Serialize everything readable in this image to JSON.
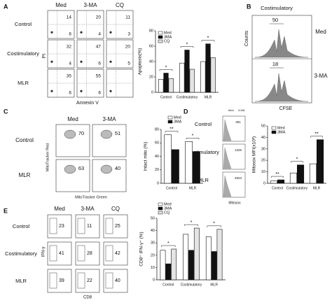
{
  "panel_labels": [
    "A",
    "B",
    "C",
    "D",
    "E"
  ],
  "panel_a": {
    "columns": [
      "Med",
      "3-MA",
      "CQ"
    ],
    "rows": [
      "Control",
      "Costimulatory",
      "MLR"
    ],
    "quadrants": [
      [
        [
          14,
          6
        ],
        [
          20,
          4
        ],
        [
          11,
          3
        ]
      ],
      [
        [
          32,
          4
        ],
        [
          47,
          6
        ],
        [
          20,
          5
        ]
      ],
      [
        [
          35,
          6
        ],
        [
          55,
          6
        ]
      ]
    ],
    "y_label": "PI",
    "x_label": "Annexin V"
  },
  "panel_b": {
    "title": "Costimulatory",
    "y_label": "Counts",
    "x_label": "CFSE",
    "histograms": [
      {
        "name": "Med",
        "value": 50
      },
      {
        "name": "3-MA",
        "value": 18
      }
    ]
  },
  "panel_c": {
    "columns": [
      "Med",
      "3-MA"
    ],
    "rows": [
      "Control",
      "MLR"
    ],
    "values": [
      [
        70,
        51
      ],
      [
        63,
        40
      ]
    ],
    "y_label": "MitoTracker Red",
    "x_label": "MitoTracker Green"
  },
  "panel_d": {
    "rows": [
      "Control",
      "Costimulatory",
      "MLR"
    ],
    "values": [
      381,
      1326,
      2923
    ],
    "legend": [
      "Med",
      "3-MA"
    ],
    "x_label": "Mitosox"
  },
  "panel_e": {
    "columns": [
      "Med",
      "3-MA",
      "CQ"
    ],
    "rows": [
      "Control",
      "Costimulatory",
      "MLR"
    ],
    "values": [
      [
        23,
        11,
        25
      ],
      [
        41,
        28,
        42
      ],
      [
        39,
        22,
        40
      ]
    ],
    "y_label": "IFN-γ",
    "x_label": "CD8"
  },
  "chart_data": [
    {
      "type": "bar",
      "y_label": "Apoptosis(%)",
      "categories": [
        "Control",
        "Costimulatory",
        "MLR"
      ],
      "series": [
        {
          "name": "Med",
          "color": "#ffffff",
          "values": [
            17,
            38,
            40
          ]
        },
        {
          "name": "3MA",
          "color": "#111111",
          "values": [
            25,
            55,
            63
          ]
        },
        {
          "name": "CQ",
          "color": "#e4e4e4",
          "values": [
            18,
            30,
            45
          ]
        }
      ],
      "ylim": [
        0,
        80
      ],
      "yticks": [
        0,
        20,
        40,
        60,
        80
      ],
      "annotations": [
        "*",
        "*",
        "*"
      ]
    },
    {
      "type": "bar",
      "y_label": "Intact mito (%)",
      "categories": [
        "Control",
        "MLR"
      ],
      "series": [
        {
          "name": "Med",
          "color": "#ffffff",
          "values": [
            72,
            62
          ]
        },
        {
          "name": "3MA",
          "color": "#111111",
          "values": [
            50,
            47
          ]
        }
      ],
      "ylim": [
        0,
        80
      ],
      "yticks": [
        0,
        20,
        40,
        60,
        80
      ],
      "annotations": [
        "**",
        "*"
      ]
    },
    {
      "type": "bar",
      "y_label": "Mitosox MFI(x10³)",
      "categories": [
        "Control",
        "Costimulatory",
        "MLR"
      ],
      "series": [
        {
          "name": "Med",
          "color": "#ffffff",
          "values": [
            2,
            9,
            17
          ]
        },
        {
          "name": "3MA",
          "color": "#111111",
          "values": [
            3,
            16,
            38
          ]
        }
      ],
      "ylim": [
        0,
        50
      ],
      "yticks": [
        0,
        10,
        20,
        30,
        40,
        50
      ],
      "annotations": [
        "**",
        "*",
        "**"
      ]
    },
    {
      "type": "bar",
      "y_label": "CD8⁺ IFN-γ⁺ (%)",
      "categories": [
        "Control",
        "Costimulatory",
        "MLR"
      ],
      "series": [
        {
          "name": "Med",
          "color": "#ffffff",
          "values": [
            24,
            37,
            35
          ]
        },
        {
          "name": "3MA",
          "color": "#111111",
          "values": [
            13,
            24,
            23
          ]
        },
        {
          "name": "CQ",
          "color": "#e4e4e4",
          "values": [
            25,
            42,
            41
          ]
        }
      ],
      "ylim": [
        0,
        50
      ],
      "yticks": [
        0,
        10,
        20,
        30,
        40,
        50
      ],
      "annotations": [
        "*",
        "*",
        "*"
      ]
    }
  ]
}
